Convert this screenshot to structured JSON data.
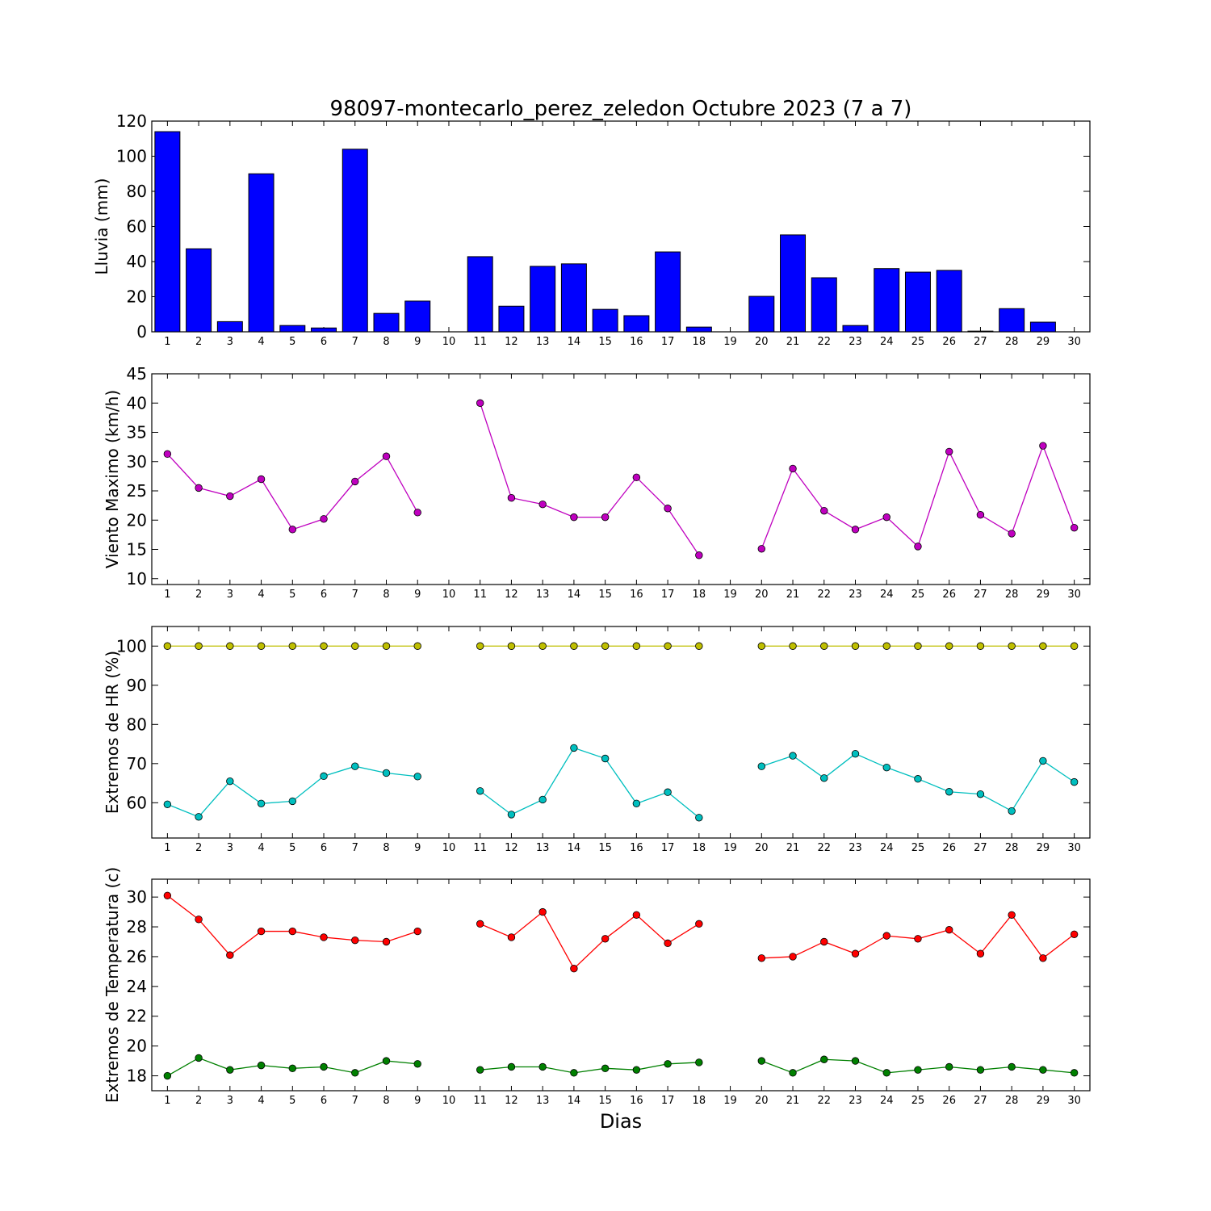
{
  "figure": {
    "title": "98097-montecarlo_perez_zeledon Octubre 2023  (7 a 7)",
    "xlabel": "Dias"
  },
  "chart_data": [
    {
      "type": "bar",
      "ylabel": "Lluvia (mm)",
      "ylim": [
        0,
        120
      ],
      "yticks": [
        0,
        20,
        40,
        60,
        80,
        100,
        120
      ],
      "x": [
        1,
        2,
        3,
        4,
        5,
        6,
        7,
        8,
        9,
        10,
        11,
        12,
        13,
        14,
        15,
        16,
        17,
        18,
        19,
        20,
        21,
        22,
        23,
        24,
        25,
        26,
        27,
        28,
        29,
        30
      ],
      "series": [
        {
          "color": "#0000ff",
          "values": [
            114,
            47.3,
            5.8,
            90,
            3.6,
            2.2,
            104,
            10.5,
            17.5,
            0,
            42.8,
            14.6,
            37.3,
            38.7,
            12.8,
            9.2,
            45.5,
            2.7,
            0,
            20.2,
            55.2,
            30.8,
            3.6,
            36,
            34,
            35,
            0.4,
            13.2,
            5.5,
            0
          ]
        }
      ],
      "grid": false
    },
    {
      "type": "line",
      "ylabel": "Viento Maximo (km/h)",
      "ylim": [
        9,
        45
      ],
      "yticks": [
        10,
        15,
        20,
        25,
        30,
        35,
        40,
        45
      ],
      "x": [
        1,
        2,
        3,
        4,
        5,
        6,
        7,
        8,
        9,
        10,
        11,
        12,
        13,
        14,
        15,
        16,
        17,
        18,
        19,
        20,
        21,
        22,
        23,
        24,
        25,
        26,
        27,
        28,
        29,
        30
      ],
      "series": [
        {
          "color": "#bf00bf",
          "values": [
            31.3,
            25.5,
            24.1,
            27,
            18.4,
            20.2,
            26.6,
            30.9,
            21.3,
            null,
            40,
            23.8,
            22.7,
            20.5,
            20.5,
            27.3,
            22,
            14,
            null,
            15.1,
            28.8,
            21.6,
            18.4,
            20.5,
            15.5,
            31.7,
            20.9,
            17.7,
            32.7,
            18.7
          ]
        }
      ],
      "grid": false
    },
    {
      "type": "line",
      "ylabel": "Extremos de HR (%)",
      "ylim": [
        51,
        105
      ],
      "yticks": [
        60,
        70,
        80,
        90,
        100
      ],
      "x": [
        1,
        2,
        3,
        4,
        5,
        6,
        7,
        8,
        9,
        10,
        11,
        12,
        13,
        14,
        15,
        16,
        17,
        18,
        19,
        20,
        21,
        22,
        23,
        24,
        25,
        26,
        27,
        28,
        29,
        30
      ],
      "series": [
        {
          "color": "#bfbf00",
          "values": [
            100,
            100,
            100,
            100,
            100,
            100,
            100,
            100,
            100,
            null,
            100,
            100,
            100,
            100,
            100,
            100,
            100,
            100,
            null,
            100,
            100,
            100,
            100,
            100,
            100,
            100,
            100,
            100,
            100,
            100
          ]
        },
        {
          "color": "#00bfbf",
          "values": [
            59.6,
            56.4,
            65.5,
            59.8,
            60.4,
            66.8,
            69.3,
            67.6,
            66.7,
            null,
            63,
            57,
            60.8,
            74,
            71.3,
            59.8,
            62.7,
            56.2,
            null,
            69.3,
            72,
            66.3,
            72.5,
            69,
            66.1,
            62.8,
            62.2,
            57.9,
            70.7,
            65.3
          ]
        }
      ],
      "grid": false
    },
    {
      "type": "line",
      "ylabel": "Extremos de Temperatura (c)",
      "ylim": [
        17,
        31.2
      ],
      "yticks": [
        18,
        20,
        22,
        24,
        26,
        28,
        30
      ],
      "x": [
        1,
        2,
        3,
        4,
        5,
        6,
        7,
        8,
        9,
        10,
        11,
        12,
        13,
        14,
        15,
        16,
        17,
        18,
        19,
        20,
        21,
        22,
        23,
        24,
        25,
        26,
        27,
        28,
        29,
        30
      ],
      "series": [
        {
          "color": "#ff0000",
          "values": [
            30.1,
            28.5,
            26.1,
            27.7,
            27.7,
            27.3,
            27.1,
            27,
            27.7,
            null,
            28.2,
            27.3,
            29,
            25.2,
            27.2,
            28.8,
            26.9,
            28.2,
            null,
            25.9,
            26,
            27,
            26.2,
            27.4,
            27.2,
            27.8,
            26.2,
            28.8,
            25.9,
            27.5
          ]
        },
        {
          "color": "#008000",
          "values": [
            18,
            19.2,
            18.4,
            18.7,
            18.5,
            18.6,
            18.2,
            19,
            18.8,
            null,
            18.4,
            18.6,
            18.6,
            18.2,
            18.5,
            18.4,
            18.8,
            18.9,
            null,
            19,
            18.2,
            19.1,
            19,
            18.2,
            18.4,
            18.6,
            18.4,
            18.6,
            18.4,
            18.2
          ]
        }
      ],
      "grid": false
    }
  ]
}
